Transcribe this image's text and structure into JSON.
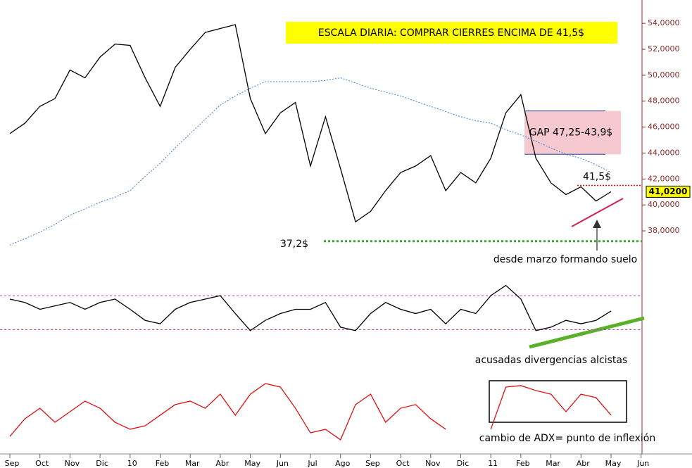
{
  "chart_data": [
    {
      "type": "line",
      "title": "ESCALA DIARIA: COMPRAR CIERRES ENCIMA DE 41,5$",
      "categories": [
        "Sep",
        null,
        "Oct",
        null,
        "Nov",
        null,
        "Dic",
        null,
        "10",
        null,
        "Feb",
        null,
        "Mar",
        null,
        "Abr",
        null,
        "May",
        null,
        "Jun",
        null,
        "Jul",
        null,
        "Ago",
        null,
        "Sep",
        null,
        "Oct",
        null,
        "Nov",
        null,
        "Dic",
        null,
        "11",
        null,
        "Feb",
        null,
        "Mar",
        null,
        "Abr",
        null,
        "May",
        null,
        "Jun",
        null
      ],
      "series": [
        {
          "color": "#000000",
          "values": [
            45.5,
            46.3,
            47.6,
            48.2,
            50.4,
            49.8,
            51.4,
            52.4,
            52.3,
            49.8,
            47.6,
            50.6,
            52.0,
            53.3,
            53.6,
            53.9,
            48.2,
            45.5,
            47.1,
            47.9,
            43.0,
            46.8,
            42.8,
            38.7,
            39.5,
            41.1,
            42.5,
            43.0,
            43.8,
            41.1,
            42.5,
            41.7,
            43.6,
            47.1,
            48.5,
            43.6,
            41.7,
            40.8,
            41.4,
            40.3,
            41.02,
            null,
            null,
            null
          ]
        },
        {
          "color": "#3a7fd5",
          "values": [
            36.9,
            37.4,
            37.9,
            38.5,
            39.2,
            39.7,
            40.2,
            40.6,
            41.1,
            42.2,
            43.2,
            44.4,
            45.5,
            46.6,
            47.7,
            48.4,
            49.0,
            49.5,
            49.5,
            49.5,
            49.5,
            49.6,
            49.8,
            49.4,
            49.0,
            48.7,
            48.4,
            48.0,
            47.6,
            47.2,
            46.8,
            46.5,
            46.3,
            45.8,
            45.4,
            44.9,
            44.4,
            43.9,
            43.6,
            43.1,
            42.5,
            null,
            null,
            null
          ]
        }
      ],
      "ylim": [
        36.7,
        55.8
      ],
      "yticks": [
        {
          "value": 38,
          "label": "38,0000"
        },
        {
          "value": 40,
          "label": "40,0000"
        },
        {
          "value": 42,
          "label": "42,0000"
        },
        {
          "value": 44,
          "label": "44,0000"
        },
        {
          "value": 46,
          "label": "46,0000"
        },
        {
          "value": 48,
          "label": "48,0000"
        },
        {
          "value": 50,
          "label": "50,0000"
        },
        {
          "value": 52,
          "label": "52,0000"
        },
        {
          "value": 54,
          "label": "54,0000"
        }
      ],
      "last_price": {
        "value": 41.02,
        "label": "41,0200"
      },
      "reference_lines": [
        {
          "value": 37.2,
          "label": "37,2$",
          "color": "#3aa33a"
        },
        {
          "value": 41.5,
          "label": "41,5$",
          "color": "#e01010"
        }
      ],
      "gap": {
        "from": 47.25,
        "to": 43.9,
        "label": "GAP 47,25-43,9$"
      },
      "annotation": "desde marzo formando suelo"
    },
    {
      "type": "line",
      "annotation": "acusadas divergencias alcistas",
      "series": [
        {
          "color": "#000000",
          "values": [
            66,
            62,
            54,
            58,
            62,
            54,
            62,
            66,
            54,
            41,
            37,
            54,
            62,
            66,
            70,
            49,
            29,
            41,
            49,
            54,
            54,
            62,
            33,
            29,
            49,
            62,
            54,
            49,
            54,
            37,
            54,
            49,
            70,
            82,
            66,
            29,
            33,
            41,
            37,
            41,
            52,
            null,
            null,
            null
          ]
        }
      ],
      "ylim": [
        4,
        99
      ],
      "levels": [
        70,
        30
      ]
    },
    {
      "type": "line",
      "annotation": "cambio de ADX= punto de inflexión",
      "series": [
        {
          "color": "#e01010",
          "values": [
            10.9,
            24.5,
            32.7,
            21.8,
            30.0,
            38.2,
            32.7,
            21.8,
            16.4,
            19.1,
            27.3,
            35.5,
            38.2,
            32.7,
            43.6,
            27.3,
            43.6,
            51.8,
            49.1,
            32.7,
            13.6,
            16.4,
            8.2,
            35.5,
            43.6,
            21.8,
            32.7,
            35.5,
            24.5,
            16.4,
            null,
            null,
            16.4,
            49.1,
            50.2,
            46.4,
            43.6,
            30.0,
            43.6,
            40.9,
            27.3,
            null,
            null,
            null
          ]
        }
      ],
      "ylim": [
        0,
        60
      ]
    }
  ]
}
